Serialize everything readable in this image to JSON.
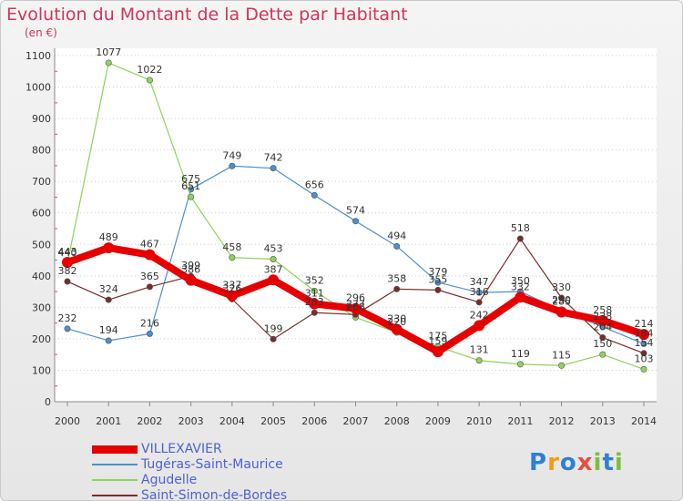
{
  "title": "Evolution du Montant de la Dette par Habitant",
  "unit": "(en €)",
  "logo": {
    "text": "Proxiti",
    "letters": [
      "P",
      "r",
      "o",
      "x",
      "i",
      "t",
      "i"
    ],
    "colors": [
      "#2f7fd3",
      "#f39c12",
      "#2f7fd3",
      "#e74c3c",
      "#7cbf3a",
      "#2f7fd3",
      "#7cbf3a"
    ]
  },
  "chart_data": {
    "type": "line",
    "title": "Evolution du Montant de la Dette par Habitant",
    "ylabel": "(en €)",
    "xlabel": "",
    "x": [
      2000,
      2001,
      2002,
      2003,
      2004,
      2005,
      2006,
      2007,
      2008,
      2009,
      2010,
      2011,
      2012,
      2013,
      2014
    ],
    "ylim": [
      0,
      1100
    ],
    "yticks": [
      0,
      100,
      200,
      300,
      400,
      500,
      600,
      700,
      800,
      900,
      1000,
      1100
    ],
    "grid": "horizontal dotted",
    "legend_position": "bottom-left",
    "series": [
      {
        "name": "VILLEXAVIER",
        "color": "#e60000",
        "emphasis": true,
        "values": [
          443,
          489,
          467,
          386,
          337,
          387,
          311,
          296,
          230,
          159,
          242,
          332,
          285,
          258,
          214
        ]
      },
      {
        "name": "Tugéras-Saint-Maurice",
        "color": "#4d8fcb",
        "emphasis": false,
        "values": [
          232,
          194,
          216,
          675,
          749,
          742,
          656,
          574,
          494,
          379,
          347,
          350,
          290,
          238,
          184
        ]
      },
      {
        "name": "Agudelle",
        "color": "#8fd35a",
        "emphasis": false,
        "values": [
          440,
          1077,
          1022,
          651,
          458,
          453,
          352,
          268,
          220,
          175,
          131,
          119,
          115,
          150,
          103
        ]
      },
      {
        "name": "Saint-Simon-de-Bordes",
        "color": "#7a2b2b",
        "emphasis": false,
        "values": [
          382,
          324,
          365,
          399,
          326,
          199,
          283,
          277,
          358,
          355,
          316,
          518,
          330,
          204,
          154
        ]
      }
    ]
  }
}
